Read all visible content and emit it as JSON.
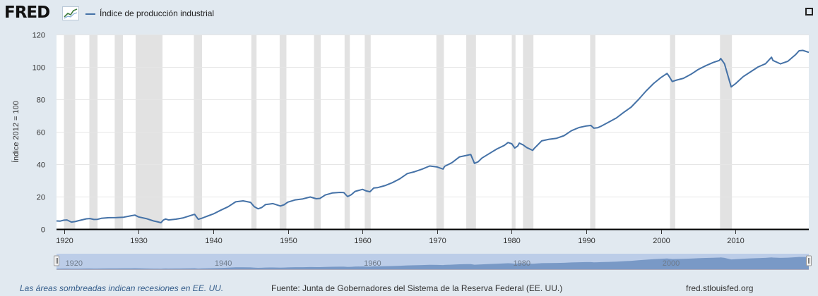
{
  "header": {
    "logo_text": "FRED",
    "logo_icon": "sparkline-icon",
    "legend_label": "Índice de producción industrial",
    "fullscreen_icon": "fullscreen-icon"
  },
  "colors": {
    "series": "#4572a7",
    "background": "#e1e9f0",
    "plot_background": "#ffffff",
    "recession": "#e2e2e2",
    "navigator_fill": "#6d8fc0",
    "navigator_band": "#bccde8",
    "note_text": "#375f8c"
  },
  "footer": {
    "recession_note": "Las áreas sombreadas indican recesiones en EE. UU.",
    "source": "Fuente: Junta de Gobernadores del Sistema de la Reserva Federal (EE. UU.)",
    "site": "fred.stlouisfed.org"
  },
  "navigator": {
    "labels": [
      "1920",
      "1940",
      "1960",
      "1980",
      "2000"
    ]
  },
  "chart_data": {
    "type": "line",
    "title": "",
    "xlabel": "",
    "ylabel": "Índice 2012 = 100",
    "xlim": [
      1919,
      2019.8
    ],
    "ylim": [
      0,
      120
    ],
    "yticks": [
      0,
      20,
      40,
      60,
      80,
      100,
      120
    ],
    "xticks": [
      1920,
      1930,
      1940,
      1950,
      1960,
      1970,
      1980,
      1990,
      2000,
      2010
    ],
    "grid": true,
    "legend_position": "top-left",
    "recessions": [
      [
        1920.0,
        1921.5
      ],
      [
        1923.4,
        1924.5
      ],
      [
        1926.8,
        1927.9
      ],
      [
        1929.6,
        1933.2
      ],
      [
        1937.4,
        1938.5
      ],
      [
        1945.1,
        1945.8
      ],
      [
        1948.9,
        1949.8
      ],
      [
        1953.5,
        1954.4
      ],
      [
        1957.6,
        1958.3
      ],
      [
        1960.3,
        1961.1
      ],
      [
        1969.9,
        1970.9
      ],
      [
        1973.9,
        1975.2
      ],
      [
        1980.0,
        1980.5
      ],
      [
        1981.5,
        1982.9
      ],
      [
        1990.5,
        1991.2
      ],
      [
        2001.2,
        2001.9
      ],
      [
        2007.9,
        2009.5
      ]
    ],
    "series": [
      {
        "name": "Índice de producción industrial",
        "x": [
          1919,
          1919.5,
          1920,
          1920.4,
          1921,
          1921.5,
          1922,
          1923,
          1923.5,
          1924,
          1924.5,
          1925,
          1926,
          1927,
          1928,
          1929,
          1929.5,
          1930,
          1931,
          1932,
          1932.5,
          1933,
          1933.3,
          1933.6,
          1934,
          1935,
          1936,
          1937,
          1937.5,
          1938,
          1938.5,
          1939,
          1940,
          1941,
          1942,
          1943,
          1944,
          1945,
          1945.5,
          1946,
          1946.5,
          1947,
          1948,
          1949,
          1949.5,
          1950,
          1951,
          1952,
          1953,
          1953.8,
          1954.3,
          1955,
          1956,
          1957,
          1957.5,
          1958,
          1958.5,
          1959,
          1960,
          1960.5,
          1961,
          1961.5,
          1962,
          1963,
          1964,
          1965,
          1966,
          1967,
          1968,
          1969,
          1970,
          1970.8,
          1971,
          1972,
          1973,
          1974,
          1974.5,
          1975,
          1975.5,
          1976,
          1977,
          1978,
          1979,
          1979.5,
          1980,
          1980.4,
          1980.8,
          1981,
          1981.5,
          1982,
          1982.8,
          1983,
          1984,
          1985,
          1986,
          1987,
          1988,
          1989,
          1990,
          1990.6,
          1991,
          1991.5,
          1992,
          1993,
          1994,
          1995,
          1996,
          1997,
          1998,
          1999,
          2000,
          2000.8,
          2001,
          2001.5,
          2002,
          2003,
          2004,
          2005,
          2006,
          2007,
          2007.8,
          2008,
          2008.5,
          2009,
          2009.4,
          2010,
          2011,
          2012,
          2013,
          2014,
          2014.8,
          2015,
          2016,
          2017,
          2018,
          2018.5,
          2019,
          2019.8
        ],
        "values": [
          5,
          4.9,
          5.5,
          5.6,
          4.3,
          4.6,
          5.2,
          6.3,
          6.5,
          5.9,
          6.0,
          6.6,
          7.0,
          7.1,
          7.3,
          8.2,
          8.6,
          7.5,
          6.5,
          5.0,
          4.5,
          3.9,
          5.5,
          6.2,
          5.6,
          6.1,
          6.9,
          8.4,
          9.1,
          6.0,
          6.7,
          7.6,
          9.3,
          11.6,
          13.8,
          16.8,
          17.4,
          16.5,
          13.8,
          12.5,
          13.3,
          15.1,
          15.7,
          14.2,
          15.0,
          16.6,
          18.0,
          18.6,
          19.8,
          18.7,
          18.9,
          21.0,
          22.3,
          22.6,
          22.5,
          20.0,
          21.2,
          23.2,
          24.5,
          23.5,
          23.0,
          25.3,
          25.5,
          26.8,
          28.6,
          31.0,
          34.2,
          35.4,
          37.0,
          38.9,
          38.3,
          37.0,
          38.7,
          41.0,
          44.5,
          45.5,
          46.0,
          40.5,
          41.5,
          43.8,
          46.6,
          49.4,
          51.6,
          53.4,
          52.6,
          50.0,
          51.2,
          53.0,
          52.0,
          50.3,
          48.5,
          49.7,
          54.4,
          55.4,
          56.0,
          57.6,
          60.7,
          62.6,
          63.6,
          63.9,
          62.2,
          62.5,
          63.5,
          66.0,
          68.5,
          72.0,
          75.2,
          80.0,
          85.2,
          89.8,
          93.5,
          96.0,
          94.8,
          91.0,
          91.8,
          93.0,
          95.5,
          98.5,
          100.8,
          102.8,
          104.0,
          105.2,
          102.0,
          94.0,
          87.7,
          89.8,
          94.0,
          97.0,
          100.0,
          102.0,
          106.0,
          104.0,
          101.9,
          103.5,
          107.5,
          110.0,
          110.2,
          109.0
        ]
      }
    ]
  }
}
